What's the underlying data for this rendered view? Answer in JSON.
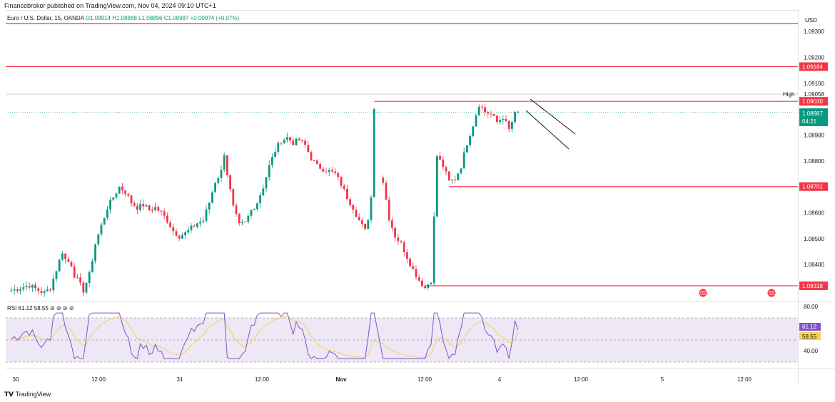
{
  "header": {
    "publisher_text": "Financebroker published on TradingView.com, Nov 04, 2024 09:10 UTC+1",
    "symbol": "Euro / U.S. Dollar, 15, OANDA",
    "ohlc": "O1.08914  H1.08988  L1.08896  C1.08987  +0.00074 (+0.07%)",
    "currency": "USD"
  },
  "footer": {
    "logo_text": "TradingView"
  },
  "rsi_panel": {
    "legend": "RSI  61.12  58.55  ⊘  ⊘  ⊘  ⊘",
    "levels": [
      "80.00",
      "40.00"
    ],
    "value_labels": [
      "61.12",
      "58.55"
    ]
  },
  "price_labels": {
    "high_label": "High",
    "current_price": "1.08987",
    "countdown": "04:21"
  },
  "colors": {
    "up": "#089981",
    "down": "#f23645",
    "level_line": "#f23645",
    "rsi_line": "#7e57c2",
    "rsi_ma": "#f7d154",
    "rsi_band": "#ede7f6"
  },
  "chart_data": {
    "type": "candlestick",
    "title": "Euro / U.S. Dollar, 15, OANDA",
    "y_axis_ticks": [
      "1.09300",
      "1.09200",
      "1.09100",
      "1.09058",
      "1.08900",
      "1.08800",
      "1.08600",
      "1.08500",
      "1.08400"
    ],
    "x_axis_ticks": [
      "30",
      "12:00",
      "31",
      "12:00",
      "Nov",
      "12:00",
      "4",
      "12:00",
      "5",
      "12:00"
    ],
    "ylim": [
      1.0826,
      1.0938
    ],
    "horizontal_levels": [
      {
        "label": "1.09164",
        "value": 1.09164
      },
      {
        "label": "1.09030",
        "value": 1.0903
      },
      {
        "label": "1.08701",
        "value": 1.08701
      },
      {
        "label": "1.08318",
        "value": 1.08318
      }
    ],
    "top_level": 1.0936,
    "session_high": 1.09058,
    "current_close": 1.08987,
    "price_path": [
      [
        0,
        1.083
      ],
      [
        3,
        1.0831
      ],
      [
        6,
        1.0832
      ],
      [
        9,
        1.083
      ],
      [
        11,
        1.0829
      ],
      [
        13,
        1.0831
      ],
      [
        15,
        1.0838
      ],
      [
        17,
        1.0845
      ],
      [
        18,
        1.0842
      ],
      [
        20,
        1.084
      ],
      [
        21,
        1.0836
      ],
      [
        22,
        1.0834
      ],
      [
        24,
        1.083
      ],
      [
        26,
        1.0836
      ],
      [
        28,
        1.0848
      ],
      [
        30,
        1.0855
      ],
      [
        32,
        1.0862
      ],
      [
        34,
        1.0866
      ],
      [
        36,
        1.087
      ],
      [
        38,
        1.0868
      ],
      [
        40,
        1.0864
      ],
      [
        42,
        1.0862
      ],
      [
        44,
        1.0863
      ],
      [
        46,
        1.0861
      ],
      [
        48,
        1.0862
      ],
      [
        50,
        1.086
      ],
      [
        52,
        1.0857
      ],
      [
        54,
        1.0853
      ],
      [
        56,
        1.0851
      ],
      [
        58,
        1.0852
      ],
      [
        60,
        1.0854
      ],
      [
        62,
        1.0856
      ],
      [
        64,
        1.0857
      ],
      [
        66,
        1.0864
      ],
      [
        68,
        1.0872
      ],
      [
        70,
        1.0876
      ],
      [
        71,
        1.0883
      ],
      [
        72,
        1.0875
      ],
      [
        74,
        1.0862
      ],
      [
        76,
        1.0855
      ],
      [
        78,
        1.0856
      ],
      [
        80,
        1.0861
      ],
      [
        82,
        1.0864
      ],
      [
        84,
        1.087
      ],
      [
        86,
        1.0878
      ],
      [
        88,
        1.0884
      ],
      [
        90,
        1.0888
      ],
      [
        92,
        1.0889
      ],
      [
        94,
        1.0887
      ],
      [
        96,
        1.0888
      ],
      [
        98,
        1.0886
      ],
      [
        100,
        1.0881
      ],
      [
        102,
        1.0878
      ],
      [
        104,
        1.0877
      ],
      [
        106,
        1.0876
      ],
      [
        108,
        1.0875
      ],
      [
        110,
        1.0871
      ],
      [
        112,
        1.0866
      ],
      [
        114,
        1.0862
      ],
      [
        116,
        1.0857
      ],
      [
        118,
        1.0853
      ],
      [
        119,
        1.0858
      ],
      [
        120,
        1.0866
      ],
      [
        121,
        1.0901
      ],
      [
        122,
        1.0886
      ],
      [
        124,
        1.0872
      ],
      [
        126,
        1.0858
      ],
      [
        128,
        1.0851
      ],
      [
        130,
        1.0848
      ],
      [
        132,
        1.0843
      ],
      [
        134,
        1.0838
      ],
      [
        136,
        1.0834
      ],
      [
        138,
        1.0831
      ],
      [
        140,
        1.0834
      ],
      [
        142,
        1.0882
      ],
      [
        144,
        1.0878
      ],
      [
        146,
        1.0872
      ],
      [
        148,
        1.0873
      ],
      [
        150,
        1.0878
      ],
      [
        152,
        1.0887
      ],
      [
        154,
        1.0894
      ],
      [
        156,
        1.0902
      ],
      [
        158,
        1.0899
      ],
      [
        160,
        1.0898
      ],
      [
        162,
        1.0895
      ],
      [
        164,
        1.0897
      ],
      [
        166,
        1.0892
      ],
      [
        168,
        1.0898
      ],
      [
        169,
        1.0899
      ]
    ],
    "rsi": {
      "levels": [
        80,
        40
      ],
      "current": 61.12,
      "ma": 58.55
    }
  }
}
